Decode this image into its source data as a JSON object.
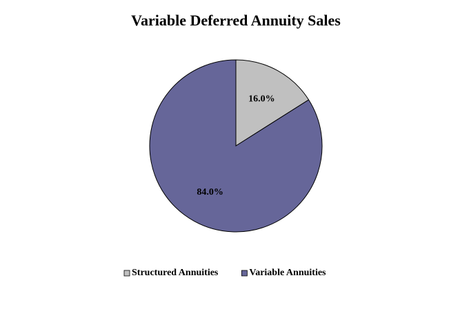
{
  "chart_data": {
    "type": "pie",
    "title": "Variable Deferred Annuity Sales",
    "categories": [
      "Structured Annuities",
      "Variable Annuities"
    ],
    "values": [
      16.0,
      84.0
    ],
    "value_labels": [
      "16.0%",
      "84.0%"
    ],
    "colors": [
      "#c0c0c0",
      "#666699"
    ],
    "legend": "bottom"
  }
}
